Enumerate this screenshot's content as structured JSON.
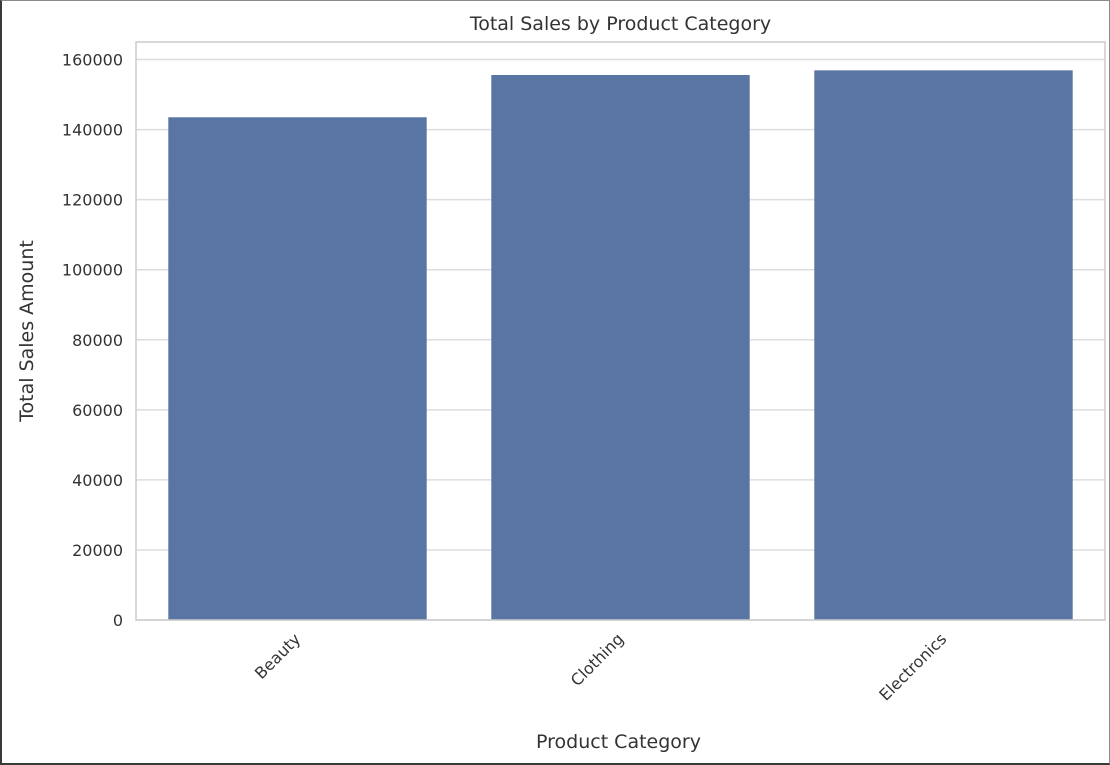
{
  "chart_data": {
    "type": "bar",
    "title": "Total Sales by Product Category",
    "xlabel": "Product Category",
    "ylabel": "Total Sales Amount",
    "categories": [
      "Beauty",
      "Clothing",
      "Electronics"
    ],
    "values": [
      143515,
      155580,
      156905
    ],
    "ylim": [
      0,
      165000
    ],
    "yticks": [
      "0",
      "20000",
      "40000",
      "60000",
      "80000",
      "100000",
      "120000",
      "140000",
      "160000"
    ],
    "ytick_values": [
      0,
      20000,
      40000,
      60000,
      80000,
      100000,
      120000,
      140000,
      160000
    ],
    "grid": "horizontal",
    "xtick_rotation": "45 degrees",
    "colors": {
      "bar": "#5875a4",
      "grid": "#dddddd",
      "frame": "#cccccc",
      "text": "#333333"
    }
  }
}
